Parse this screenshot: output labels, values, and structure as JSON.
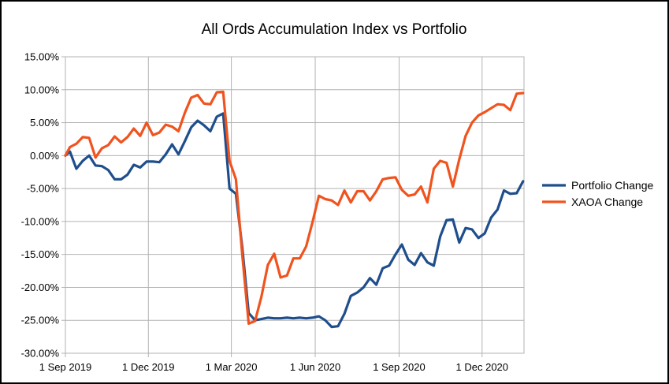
{
  "chart_data": {
    "type": "line",
    "title": "All Ords Accumulation Index vs Portfolio",
    "xlabel": "",
    "ylabel": "",
    "x_tick_labels": [
      "1 Sep 2019",
      "1 Dec 2019",
      "1 Mar 2020",
      "1 Jun 2020",
      "1 Sep 2020",
      "1 Dec 2020"
    ],
    "y_tick_labels": [
      "15.00%",
      "10.00%",
      "5.00%",
      "0.00%",
      "-5.00%",
      "-10.00%",
      "-15.00%",
      "-20.00%",
      "-25.00%",
      "-30.00%"
    ],
    "ylim": [
      -30,
      15
    ],
    "xlim": [
      "2019-09-01",
      "2021-01-16"
    ],
    "grid": true,
    "legend_position": "right",
    "x": [
      "2019-09-01",
      "2019-09-06",
      "2019-09-13",
      "2019-09-20",
      "2019-09-27",
      "2019-10-04",
      "2019-10-11",
      "2019-10-18",
      "2019-10-25",
      "2019-11-01",
      "2019-11-08",
      "2019-11-15",
      "2019-11-22",
      "2019-11-29",
      "2019-12-06",
      "2019-12-13",
      "2019-12-20",
      "2019-12-27",
      "2020-01-03",
      "2020-01-10",
      "2020-01-17",
      "2020-01-24",
      "2020-01-31",
      "2020-02-07",
      "2020-02-14",
      "2020-02-21",
      "2020-02-28",
      "2020-03-06",
      "2020-03-13",
      "2020-03-20",
      "2020-03-27",
      "2020-04-03",
      "2020-04-10",
      "2020-04-17",
      "2020-04-24",
      "2020-05-01",
      "2020-05-08",
      "2020-05-15",
      "2020-05-22",
      "2020-05-29",
      "2020-06-05",
      "2020-06-12",
      "2020-06-19",
      "2020-06-26",
      "2020-07-03",
      "2020-07-10",
      "2020-07-17",
      "2020-07-24",
      "2020-07-31",
      "2020-08-07",
      "2020-08-14",
      "2020-08-21",
      "2020-08-28",
      "2020-09-04",
      "2020-09-11",
      "2020-09-18",
      "2020-09-25",
      "2020-10-02",
      "2020-10-09",
      "2020-10-16",
      "2020-10-23",
      "2020-10-30",
      "2020-11-06",
      "2020-11-13",
      "2020-11-20",
      "2020-11-27",
      "2020-12-04",
      "2020-12-11",
      "2020-12-18",
      "2020-12-25",
      "2021-01-01",
      "2021-01-08",
      "2021-01-15"
    ],
    "series": [
      {
        "name": "Portfolio Change",
        "color": "#1f4e8c",
        "values": [
          0.0,
          0.6,
          -2.0,
          -0.8,
          0.0,
          -1.5,
          -1.6,
          -2.2,
          -3.6,
          -3.6,
          -2.9,
          -1.4,
          -1.8,
          -0.9,
          -0.9,
          -1.0,
          0.2,
          1.7,
          0.2,
          2.2,
          4.3,
          5.3,
          4.6,
          3.7,
          5.9,
          6.4,
          -5.0,
          -5.8,
          -14.0,
          -23.9,
          -25.0,
          -24.8,
          -24.6,
          -24.7,
          -24.7,
          -24.6,
          -24.7,
          -24.6,
          -24.7,
          -24.6,
          -24.4,
          -25.0,
          -26.0,
          -25.9,
          -24.0,
          -21.3,
          -20.8,
          -20.0,
          -18.6,
          -19.6,
          -17.1,
          -16.7,
          -15.0,
          -13.5,
          -15.8,
          -16.6,
          -14.8,
          -16.2,
          -16.7,
          -12.3,
          -9.8,
          -9.7,
          -13.2,
          -11.0,
          -11.2,
          -12.5,
          -11.8,
          -9.4,
          -8.2,
          -5.3,
          -5.8,
          -5.7,
          -3.9
        ]
      },
      {
        "name": "XAOA Change",
        "color": "#f0531e",
        "values": [
          0.0,
          1.3,
          1.8,
          2.8,
          2.7,
          -0.3,
          1.1,
          1.6,
          2.9,
          2.0,
          2.8,
          4.1,
          3.0,
          5.0,
          3.1,
          3.5,
          4.7,
          4.4,
          3.7,
          6.5,
          8.8,
          9.2,
          7.9,
          7.8,
          9.6,
          9.7,
          -0.8,
          -3.6,
          -15.1,
          -25.5,
          -25.1,
          -21.4,
          -16.6,
          -14.9,
          -18.5,
          -18.2,
          -15.6,
          -15.6,
          -13.8,
          -10.1,
          -6.1,
          -6.6,
          -6.8,
          -7.5,
          -5.3,
          -7.1,
          -5.4,
          -5.4,
          -6.8,
          -5.4,
          -3.6,
          -3.4,
          -3.3,
          -5.2,
          -6.1,
          -5.9,
          -4.7,
          -7.1,
          -2.0,
          -0.8,
          -1.1,
          -4.7,
          -0.6,
          3.0,
          5.0,
          6.1,
          6.6,
          7.2,
          7.8,
          7.7,
          6.9,
          9.4,
          9.5
        ]
      }
    ]
  }
}
